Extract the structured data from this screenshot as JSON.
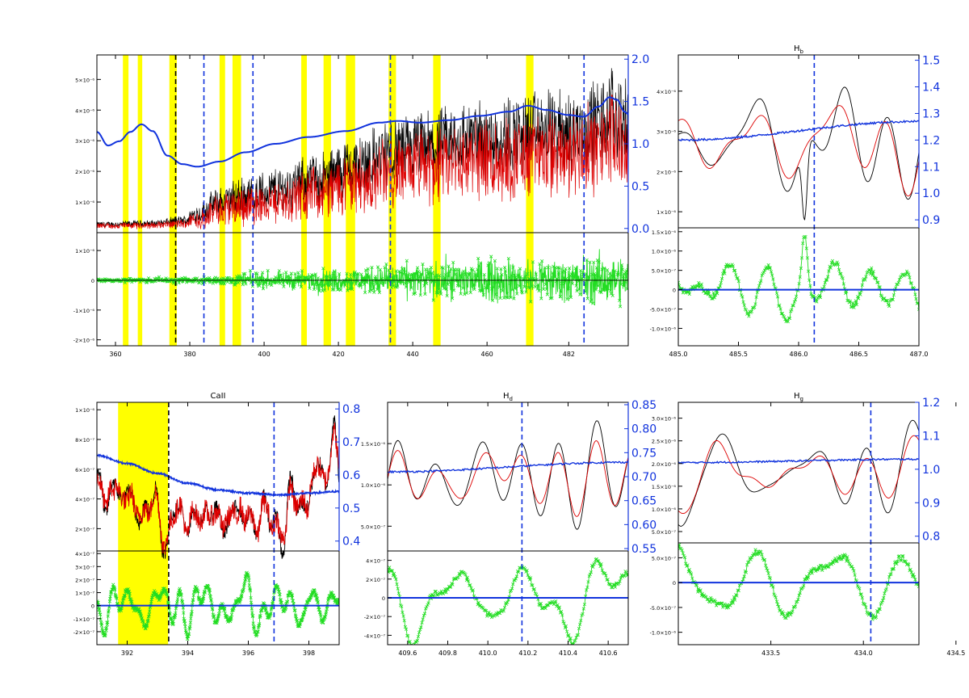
{
  "colors": {
    "observed": "#000000",
    "model": "#dd0000",
    "continuum": "#1133dd",
    "residual": "#22dd22",
    "masked_band": "#ffff00",
    "marker_blue": "#1133dd",
    "marker_black": "#000000",
    "axis_right": "#1133dd"
  },
  "chart_data": [
    {
      "id": "full",
      "type": "line",
      "title": "",
      "xlim": [
        355,
        498
      ],
      "xticks": [
        {
          "v": 360,
          "t": "360"
        },
        {
          "v": 380,
          "t": "380"
        },
        {
          "v": 400,
          "t": "400"
        },
        {
          "v": 420,
          "t": "420"
        },
        {
          "v": 440,
          "t": "440"
        },
        {
          "v": 460,
          "t": "460"
        },
        {
          "v": 482,
          "t": "482"
        }
      ],
      "ylim": [
        0,
        5.8
      ],
      "yticks": [
        {
          "v": 1,
          "t": "1×10⁻⁶"
        },
        {
          "v": 2,
          "t": "2×10⁻⁶"
        },
        {
          "v": 3,
          "t": "3×10⁻⁶"
        },
        {
          "v": 4,
          "t": "4×10⁻⁶"
        },
        {
          "v": 5,
          "t": "5×10⁻⁶"
        }
      ],
      "y2lim": [
        -0.05,
        2.05
      ],
      "y2ticks": [
        {
          "v": 0.0,
          "t": "0.0"
        },
        {
          "v": 0.5,
          "t": "0.5"
        },
        {
          "v": 1.0,
          "t": "1.0"
        },
        {
          "v": 1.5,
          "t": "1.5"
        },
        {
          "v": 2.0,
          "t": "2.0"
        }
      ],
      "rlim": [
        -2.2,
        1.6
      ],
      "rticks": [
        {
          "v": 1,
          "t": "1×10⁻⁶"
        },
        {
          "v": 0,
          "t": "0"
        },
        {
          "v": -1,
          "t": "-1×10⁻⁶"
        },
        {
          "v": -2,
          "t": "-2×10⁻⁶"
        }
      ],
      "bands": [
        [
          362,
          363.5
        ],
        [
          366,
          367.2
        ],
        [
          374.5,
          376.5
        ],
        [
          388,
          389.5
        ],
        [
          391.5,
          393.8
        ],
        [
          410,
          411.5
        ],
        [
          416,
          418
        ],
        [
          422,
          424.5
        ],
        [
          433.5,
          435.5
        ],
        [
          445.5,
          447.5
        ],
        [
          470.5,
          472.5
        ]
      ],
      "markers": [
        {
          "x": 376.2,
          "color": "black"
        },
        {
          "x": 383.8,
          "color": "blue"
        },
        {
          "x": 397.0,
          "color": "blue"
        },
        {
          "x": 434.0,
          "color": "blue"
        },
        {
          "x": 486.1,
          "color": "blue"
        }
      ],
      "continuum": {
        "x": [
          355,
          358,
          361,
          364,
          367,
          370,
          374,
          378,
          382,
          388,
          395,
          403,
          412,
          422,
          431,
          436,
          442,
          450,
          458,
          466,
          471,
          476,
          482,
          486,
          490,
          493,
          495,
          497,
          498
        ],
        "y": [
          1.14,
          0.98,
          1.03,
          1.14,
          1.23,
          1.15,
          0.86,
          0.76,
          0.73,
          0.79,
          0.9,
          1.0,
          1.08,
          1.15,
          1.25,
          1.27,
          1.25,
          1.28,
          1.33,
          1.38,
          1.45,
          1.4,
          1.34,
          1.32,
          1.44,
          1.55,
          1.52,
          1.38,
          1.35
        ]
      },
      "observed_envelope": {
        "x": [
          355,
          370,
          378,
          382,
          388,
          395,
          405,
          415,
          425,
          435,
          445,
          455,
          465,
          475,
          485,
          490,
          494,
          498
        ],
        "mean": [
          0.25,
          0.28,
          0.35,
          0.55,
          0.9,
          1.1,
          1.3,
          1.6,
          2.0,
          2.4,
          2.55,
          2.8,
          2.9,
          3.0,
          3.05,
          3.3,
          3.6,
          3.2
        ],
        "amp": [
          0.1,
          0.12,
          0.18,
          0.35,
          0.55,
          0.7,
          0.8,
          0.95,
          1.1,
          1.25,
          1.3,
          1.4,
          1.45,
          1.5,
          1.55,
          1.6,
          1.7,
          1.5
        ]
      },
      "residual_envelope": {
        "x": [
          355,
          380,
          400,
          420,
          440,
          460,
          480,
          498
        ],
        "amp": [
          0.08,
          0.15,
          0.35,
          0.55,
          0.8,
          1.0,
          1.1,
          1.15
        ]
      }
    },
    {
      "id": "hb",
      "type": "line",
      "title": "Hb",
      "xlim": [
        485.0,
        487.0
      ],
      "xticks": [
        {
          "v": 485.0,
          "t": "485.0"
        },
        {
          "v": 485.5,
          "t": "485.5"
        },
        {
          "v": 486.0,
          "t": "486.0"
        },
        {
          "v": 486.5,
          "t": "486.5"
        },
        {
          "v": 487.0,
          "t": "487.0"
        }
      ],
      "ylim": [
        0.6,
        4.9
      ],
      "yticks": [
        {
          "v": 1,
          "t": "1×10⁻⁶"
        },
        {
          "v": 2,
          "t": "2×10⁻⁶"
        },
        {
          "v": 3,
          "t": "3×10⁻⁶"
        },
        {
          "v": 4,
          "t": "4×10⁻⁶"
        }
      ],
      "y2lim": [
        0.87,
        1.52
      ],
      "y2ticks": [
        {
          "v": 0.9,
          "t": "0.9"
        },
        {
          "v": 1.0,
          "t": "1.0"
        },
        {
          "v": 1.1,
          "t": "1.1"
        },
        {
          "v": 1.2,
          "t": "1.2"
        },
        {
          "v": 1.3,
          "t": "1.3"
        },
        {
          "v": 1.4,
          "t": "1.4"
        },
        {
          "v": 1.5,
          "t": "1.5"
        }
      ],
      "rlim": [
        -1.45,
        1.6
      ],
      "rticks": [
        {
          "v": 1.5,
          "t": "1.5×10⁻⁶"
        },
        {
          "v": 1.0,
          "t": "1.0×10⁻⁶"
        },
        {
          "v": 0.5,
          "t": "5.0×10⁻⁷"
        },
        {
          "v": 0,
          "t": "0"
        },
        {
          "v": -0.5,
          "t": "-5.0×10⁻⁷"
        },
        {
          "v": -1.0,
          "t": "-1.0×10⁻⁶"
        }
      ],
      "bands": [],
      "markers": [
        {
          "x": 486.13,
          "color": "blue"
        }
      ],
      "continuum": {
        "x": [
          485.0,
          487.0
        ],
        "y": [
          1.2,
          1.27
        ]
      },
      "observed_envelope": {
        "x": [
          485.0,
          487.0
        ],
        "mean": [
          2.6,
          2.9
        ],
        "amp": [
          0.9,
          0.9
        ]
      }
    },
    {
      "id": "caii",
      "type": "line",
      "title": "CaII",
      "xlim": [
        391.0,
        399.0
      ],
      "xticks": [
        {
          "v": 392,
          "t": "392"
        },
        {
          "v": 394,
          "t": "394"
        },
        {
          "v": 396,
          "t": "396"
        },
        {
          "v": 398,
          "t": "398"
        }
      ],
      "ylim": [
        0.05,
        1.05
      ],
      "yticks": [
        {
          "v": 0.2,
          "t": "2×10⁻⁷"
        },
        {
          "v": 0.4,
          "t": "4×10⁻⁷"
        },
        {
          "v": 0.6,
          "t": "6×10⁻⁷"
        },
        {
          "v": 0.8,
          "t": "8×10⁻⁷"
        },
        {
          "v": 1.0,
          "t": "1×10⁻⁶"
        }
      ],
      "y2lim": [
        0.37,
        0.82
      ],
      "y2ticks": [
        {
          "v": 0.4,
          "t": "0.4"
        },
        {
          "v": 0.5,
          "t": "0.5"
        },
        {
          "v": 0.6,
          "t": "0.6"
        },
        {
          "v": 0.7,
          "t": "0.7"
        },
        {
          "v": 0.8,
          "t": "0.8"
        }
      ],
      "rlim": [
        -3.0,
        4.2
      ],
      "rticks": [
        {
          "v": 4,
          "t": "4×10⁻⁷"
        },
        {
          "v": 3,
          "t": "3×10⁻⁷"
        },
        {
          "v": 2,
          "t": "2×10⁻⁷"
        },
        {
          "v": 1,
          "t": "1×10⁻⁷"
        },
        {
          "v": 0,
          "t": "0"
        },
        {
          "v": -1,
          "t": "-1×10⁻⁷"
        },
        {
          "v": -2,
          "t": "-2×10⁻⁷"
        }
      ],
      "bands": [
        [
          391.7,
          393.35
        ]
      ],
      "markers": [
        {
          "x": 393.37,
          "color": "black"
        },
        {
          "x": 396.85,
          "color": "blue"
        }
      ],
      "continuum": {
        "x": [
          391.0,
          392.0,
          393.0,
          394.0,
          395.0,
          396.0,
          397.0,
          398.0,
          399.0
        ],
        "y": [
          0.66,
          0.635,
          0.605,
          0.575,
          0.555,
          0.545,
          0.54,
          0.545,
          0.55
        ]
      }
    },
    {
      "id": "hd",
      "type": "line",
      "title": "Hd",
      "xlim": [
        409.5,
        410.7
      ],
      "xticks": [
        {
          "v": 409.6,
          "t": "409.6"
        },
        {
          "v": 409.8,
          "t": "409.8"
        },
        {
          "v": 410.0,
          "t": "410.0"
        },
        {
          "v": 410.2,
          "t": "410.2"
        },
        {
          "v": 410.4,
          "t": "410.4"
        },
        {
          "v": 410.6,
          "t": "410.6"
        }
      ],
      "ylim": [
        0.2,
        2.0
      ],
      "yticks": [
        {
          "v": 0.5,
          "t": "5.0×10⁻⁷"
        },
        {
          "v": 1.0,
          "t": "1.0×10⁻⁶"
        },
        {
          "v": 1.5,
          "t": "1.5×10⁻⁶"
        }
      ],
      "y2lim": [
        0.545,
        0.855
      ],
      "y2ticks": [
        {
          "v": 0.55,
          "t": "0.55"
        },
        {
          "v": 0.6,
          "t": "0.60"
        },
        {
          "v": 0.65,
          "t": "0.65"
        },
        {
          "v": 0.7,
          "t": "0.70"
        },
        {
          "v": 0.75,
          "t": "0.75"
        },
        {
          "v": 0.8,
          "t": "0.80"
        },
        {
          "v": 0.85,
          "t": "0.85"
        }
      ],
      "rlim": [
        -5.0,
        5.0
      ],
      "rticks": [
        {
          "v": 4,
          "t": "4×10⁻⁷"
        },
        {
          "v": 2,
          "t": "2×10⁻⁷"
        },
        {
          "v": 0,
          "t": "0"
        },
        {
          "v": -2,
          "t": "-2×10⁻⁷"
        },
        {
          "v": -4,
          "t": "-4×10⁻⁷"
        }
      ],
      "bands": [],
      "markers": [
        {
          "x": 410.17,
          "color": "blue"
        }
      ],
      "continuum": {
        "x": [
          409.5,
          410.7
        ],
        "y": [
          0.71,
          0.73
        ]
      }
    },
    {
      "id": "hg",
      "type": "line",
      "title": "Hg",
      "xlim": [
        433.0,
        434.3
      ],
      "xticks": [
        {
          "v": 433.5,
          "t": "433.5"
        },
        {
          "v": 434.0,
          "t": "434.0"
        },
        {
          "v": 434.5,
          "t": "434.5"
        }
      ],
      "ylim": [
        0.25,
        3.35
      ],
      "yticks": [
        {
          "v": 0.5,
          "t": "5.0×10⁻⁷"
        },
        {
          "v": 1.0,
          "t": "1.0×10⁻⁶"
        },
        {
          "v": 1.5,
          "t": "1.5×10⁻⁶"
        },
        {
          "v": 2.0,
          "t": "2.0×10⁻⁶"
        },
        {
          "v": 2.5,
          "t": "2.5×10⁻⁶"
        },
        {
          "v": 3.0,
          "t": "3.0×10⁻⁶"
        }
      ],
      "y2lim": [
        0.78,
        1.2
      ],
      "y2ticks": [
        {
          "v": 0.8,
          "t": "0.8"
        },
        {
          "v": 0.9,
          "t": "0.9"
        },
        {
          "v": 1.0,
          "t": "1.0"
        },
        {
          "v": 1.1,
          "t": "1.1"
        },
        {
          "v": 1.2,
          "t": "1.2"
        }
      ],
      "rlim": [
        -1.25,
        0.8
      ],
      "rticks": [
        {
          "v": 0.5,
          "t": "5.0×10⁻⁷"
        },
        {
          "v": 0,
          "t": "0"
        },
        {
          "v": -0.5,
          "t": "-5.0×10⁻⁷"
        },
        {
          "v": -1.0,
          "t": "-1.0×10⁻⁶"
        }
      ],
      "bands": [],
      "markers": [
        {
          "x": 434.04,
          "color": "blue"
        }
      ],
      "continuum": {
        "x": [
          433.0,
          434.3
        ],
        "y": [
          1.02,
          1.03
        ]
      }
    }
  ]
}
